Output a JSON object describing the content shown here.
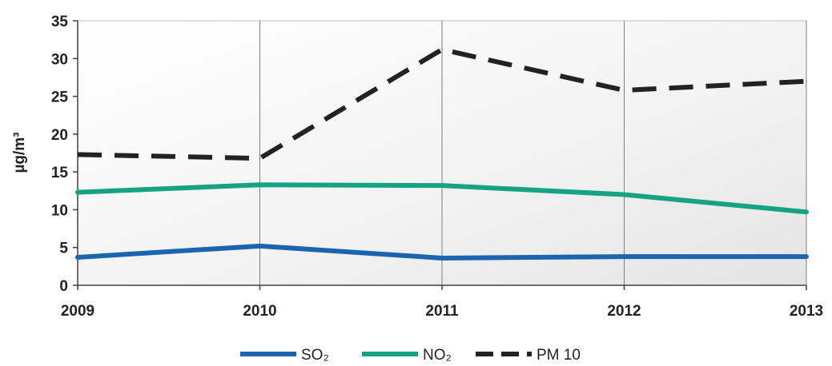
{
  "chart_data": {
    "type": "line",
    "x": [
      "2009",
      "2010",
      "2011",
      "2012",
      "2013"
    ],
    "ylabel": "µg/m³",
    "ylim": [
      0,
      35
    ],
    "yticks": [
      "0",
      "5",
      "10",
      "15",
      "20",
      "25",
      "30",
      "35"
    ],
    "grid": {
      "vertical": true,
      "horizontal": false
    },
    "legend_position": "bottom",
    "series": [
      {
        "name": "SO₂",
        "values": [
          3.7,
          5.2,
          3.6,
          3.8,
          3.8
        ],
        "color": "#1a64b0",
        "style": "solid"
      },
      {
        "name": "NO₂",
        "values": [
          12.3,
          13.3,
          13.2,
          12.0,
          9.7
        ],
        "color": "#16a384",
        "style": "solid"
      },
      {
        "name": "PM 10",
        "values": [
          17.3,
          16.8,
          31.2,
          25.8,
          27.0
        ],
        "color": "#222222",
        "style": "dashed"
      }
    ]
  }
}
